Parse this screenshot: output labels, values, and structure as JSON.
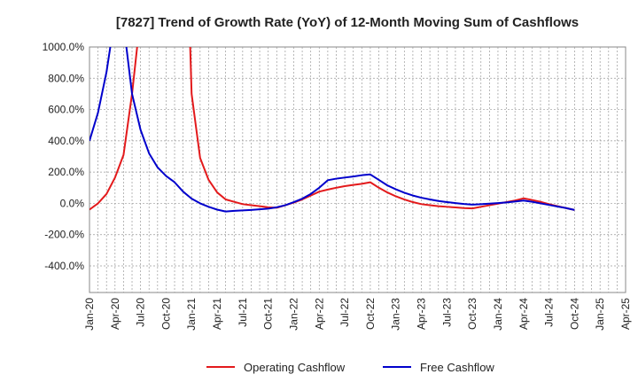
{
  "chart_data": {
    "type": "line",
    "title": "[7827]  Trend of Growth Rate (YoY) of 12-Month Moving Sum of Cashflows",
    "xlabel": "",
    "ylabel": "",
    "x_ticks": [
      "Jan-20",
      "Apr-20",
      "Jul-20",
      "Oct-20",
      "Jan-21",
      "Apr-21",
      "Jul-21",
      "Oct-21",
      "Jan-22",
      "Apr-22",
      "Jul-22",
      "Oct-22",
      "Jan-23",
      "Apr-23",
      "Jul-23",
      "Oct-23",
      "Jan-24",
      "Apr-24",
      "Jul-24",
      "Oct-24",
      "Jan-25",
      "Apr-25"
    ],
    "y_ticks": [
      "1000.0%",
      "800.0%",
      "600.0%",
      "400.0%",
      "200.0%",
      "0.0%",
      "-200.0%",
      "-400.0%"
    ],
    "ylim": [
      -570,
      1000
    ],
    "grid": true,
    "legend_position": "bottom",
    "series": [
      {
        "name": "Operating Cashflow",
        "color": "#e31a1c",
        "points": [
          [
            "2020-01",
            -40
          ],
          [
            "2020-02",
            0
          ],
          [
            "2020-03",
            60
          ],
          [
            "2020-04",
            165
          ],
          [
            "2020-05",
            310
          ],
          [
            "2020-06",
            700
          ],
          [
            "2020-07",
            1200
          ],
          [
            "2020-08",
            null
          ],
          [
            "2020-09",
            null
          ],
          [
            "2020-10",
            null
          ],
          [
            "2020-11",
            null
          ],
          [
            "2020-12",
            2500
          ],
          [
            "2021-01",
            700
          ],
          [
            "2021-02",
            290
          ],
          [
            "2021-03",
            150
          ],
          [
            "2021-04",
            70
          ],
          [
            "2021-05",
            25
          ],
          [
            "2021-06",
            10
          ],
          [
            "2021-07",
            -5
          ],
          [
            "2021-08",
            -12
          ],
          [
            "2021-09",
            -18
          ],
          [
            "2021-10",
            -25
          ],
          [
            "2021-11",
            -28
          ],
          [
            "2021-12",
            -12
          ],
          [
            "2022-01",
            5
          ],
          [
            "2022-02",
            25
          ],
          [
            "2022-03",
            50
          ],
          [
            "2022-04",
            75
          ],
          [
            "2022-05",
            88
          ],
          [
            "2022-06",
            100
          ],
          [
            "2022-07",
            110
          ],
          [
            "2022-08",
            118
          ],
          [
            "2022-09",
            125
          ],
          [
            "2022-10",
            135
          ],
          [
            "2022-11",
            100
          ],
          [
            "2022-12",
            70
          ],
          [
            "2023-01",
            45
          ],
          [
            "2023-02",
            25
          ],
          [
            "2023-03",
            8
          ],
          [
            "2023-04",
            -5
          ],
          [
            "2023-05",
            -12
          ],
          [
            "2023-06",
            -18
          ],
          [
            "2023-07",
            -22
          ],
          [
            "2023-08",
            -26
          ],
          [
            "2023-09",
            -30
          ],
          [
            "2023-10",
            -32
          ],
          [
            "2023-11",
            -22
          ],
          [
            "2023-12",
            -12
          ],
          [
            "2024-01",
            -2
          ],
          [
            "2024-02",
            8
          ],
          [
            "2024-03",
            18
          ],
          [
            "2024-04",
            32
          ],
          [
            "2024-05",
            22
          ],
          [
            "2024-06",
            10
          ],
          [
            "2024-07",
            -5
          ],
          [
            "2024-08",
            -18
          ],
          [
            "2024-09",
            -30
          ],
          [
            "2024-10",
            -42
          ]
        ]
      },
      {
        "name": "Free Cashflow",
        "color": "#0000cc",
        "points": [
          [
            "2020-01",
            400
          ],
          [
            "2020-02",
            580
          ],
          [
            "2020-03",
            840
          ],
          [
            "2020-04",
            1200
          ],
          [
            "2020-05",
            1150
          ],
          [
            "2020-06",
            700
          ],
          [
            "2020-07",
            470
          ],
          [
            "2020-08",
            320
          ],
          [
            "2020-09",
            230
          ],
          [
            "2020-10",
            175
          ],
          [
            "2020-11",
            135
          ],
          [
            "2020-12",
            75
          ],
          [
            "2021-01",
            30
          ],
          [
            "2021-02",
            0
          ],
          [
            "2021-03",
            -22
          ],
          [
            "2021-04",
            -40
          ],
          [
            "2021-05",
            -52
          ],
          [
            "2021-06",
            -48
          ],
          [
            "2021-07",
            -45
          ],
          [
            "2021-08",
            -42
          ],
          [
            "2021-09",
            -38
          ],
          [
            "2021-10",
            -34
          ],
          [
            "2021-11",
            -25
          ],
          [
            "2021-12",
            -12
          ],
          [
            "2022-01",
            8
          ],
          [
            "2022-02",
            30
          ],
          [
            "2022-03",
            60
          ],
          [
            "2022-04",
            100
          ],
          [
            "2022-05",
            148
          ],
          [
            "2022-06",
            158
          ],
          [
            "2022-07",
            165
          ],
          [
            "2022-08",
            172
          ],
          [
            "2022-09",
            180
          ],
          [
            "2022-10",
            185
          ],
          [
            "2022-11",
            150
          ],
          [
            "2022-12",
            115
          ],
          [
            "2023-01",
            90
          ],
          [
            "2023-02",
            68
          ],
          [
            "2023-03",
            50
          ],
          [
            "2023-04",
            36
          ],
          [
            "2023-05",
            25
          ],
          [
            "2023-06",
            15
          ],
          [
            "2023-07",
            8
          ],
          [
            "2023-08",
            2
          ],
          [
            "2023-09",
            -4
          ],
          [
            "2023-10",
            -8
          ],
          [
            "2023-11",
            -5
          ],
          [
            "2023-12",
            -2
          ],
          [
            "2024-01",
            2
          ],
          [
            "2024-02",
            6
          ],
          [
            "2024-03",
            12
          ],
          [
            "2024-04",
            18
          ],
          [
            "2024-05",
            10
          ],
          [
            "2024-06",
            0
          ],
          [
            "2024-07",
            -10
          ],
          [
            "2024-08",
            -20
          ],
          [
            "2024-09",
            -30
          ],
          [
            "2024-10",
            -42
          ]
        ]
      }
    ]
  }
}
